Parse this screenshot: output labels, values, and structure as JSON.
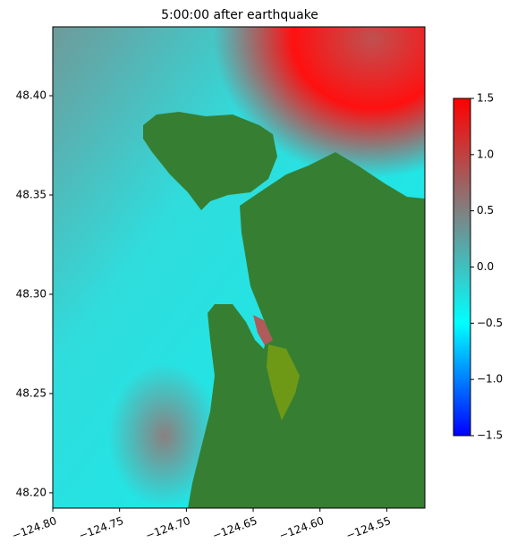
{
  "chart_data": {
    "type": "map",
    "title": "5:00:00 after earthquake",
    "xlim": [
      -124.8,
      -124.5215
    ],
    "ylim": [
      48.1923,
      48.4347
    ],
    "xticks": [
      {
        "value": -124.8,
        "label": "−124.80"
      },
      {
        "value": -124.75,
        "label": "−124.75"
      },
      {
        "value": -124.7,
        "label": "−124.70"
      },
      {
        "value": -124.65,
        "label": "−124.65"
      },
      {
        "value": -124.6,
        "label": "−124.60"
      },
      {
        "value": -124.55,
        "label": "−124.55"
      }
    ],
    "yticks": [
      {
        "value": 48.2,
        "label": "48.20"
      },
      {
        "value": 48.25,
        "label": "48.25"
      },
      {
        "value": 48.3,
        "label": "48.30"
      },
      {
        "value": 48.35,
        "label": "48.35"
      },
      {
        "value": 48.4,
        "label": "48.40"
      }
    ],
    "colorbar": {
      "lim": [
        -1.5,
        1.5
      ],
      "colors": [
        "#0000ff",
        "#00ffff",
        "#808080",
        "#ff0000"
      ],
      "ticks": [
        {
          "value": -1.5,
          "label": "−1.5"
        },
        {
          "value": -1.0,
          "label": "−1.0"
        },
        {
          "value": -0.5,
          "label": "−0.5"
        },
        {
          "value": 0.0,
          "label": "0.0"
        },
        0.5,
        {
          "value": 1.0,
          "label": "1.0"
        },
        1.5
      ]
    }
  }
}
